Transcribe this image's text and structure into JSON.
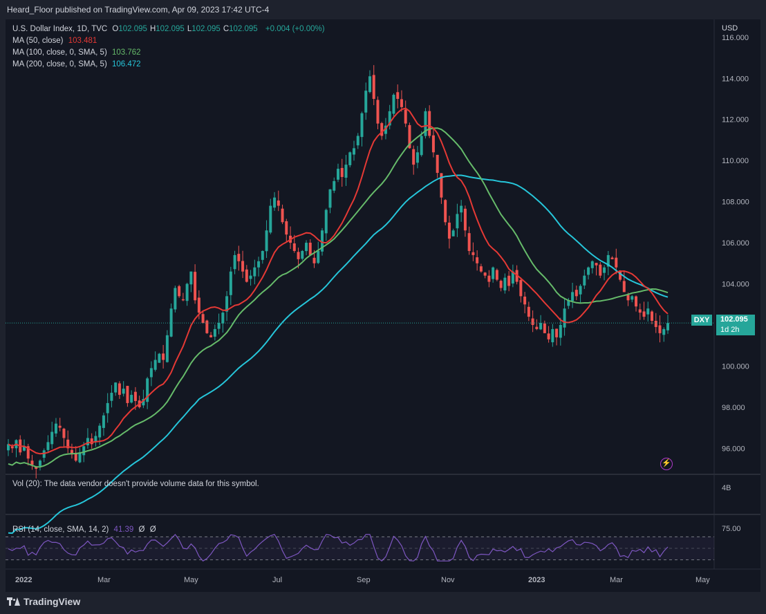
{
  "header": {
    "title": "Heard_Floor published on TradingView.com, Apr 09, 2023 17:42 UTC-4"
  },
  "legend": {
    "symbol": "U.S. Dollar Index, 1D, TVC",
    "ohlc": [
      {
        "k": "O",
        "v": "102.095"
      },
      {
        "k": "H",
        "v": "102.095"
      },
      {
        "k": "L",
        "v": "102.095"
      },
      {
        "k": "C",
        "v": "102.095"
      }
    ],
    "change": "+0.004 (+0.00%)",
    "ma50": {
      "label": "MA (50, close)",
      "value": "103.481",
      "color": "#e53935"
    },
    "ma100": {
      "label": "MA (100, close, 0, SMA, 5)",
      "value": "103.762",
      "color": "#66bb6a"
    },
    "ma200": {
      "label": "MA (200, close, 0, SMA, 5)",
      "value": "106.472",
      "color": "#26c6da"
    },
    "vol": "Vol (20): The data vendor doesn't provide volume data for this symbol.",
    "rsi": {
      "label": "RSI (14, close, SMA, 14, 2)",
      "value": "41.39",
      "extra1": "Ø",
      "extra2": "Ø"
    }
  },
  "price_axis": {
    "currency": "USD",
    "ticks": [
      "116.000",
      "114.000",
      "112.000",
      "110.000",
      "108.000",
      "106.000",
      "104.000",
      "102.000",
      "100.000",
      "98.000",
      "96.000"
    ],
    "current_price": "102.095",
    "countdown": "1d 2h",
    "symbol_tag": "DXY"
  },
  "volume_axis": {
    "label": "4B"
  },
  "rsi_axis": {
    "ticks": [
      "75.00"
    ]
  },
  "time_axis": {
    "labels": [
      "2022",
      "Mar",
      "May",
      "Jul",
      "Sep",
      "Nov",
      "2023",
      "Mar",
      "May"
    ]
  },
  "footer": {
    "brand": "TradingView"
  },
  "colors": {
    "up": "#26a69a",
    "down": "#ef5350",
    "rsi": "#7e57c2",
    "bg": "#131722"
  },
  "chart_data": {
    "type": "candlestick",
    "symbol": "DXY",
    "y_range": [
      95,
      116
    ],
    "closes": [
      96.2,
      96.0,
      96.4,
      95.8,
      96.1,
      95.5,
      95.2,
      95.0,
      95.4,
      95.9,
      96.3,
      96.8,
      97.2,
      97.0,
      96.5,
      96.0,
      95.7,
      95.4,
      95.8,
      96.1,
      96.5,
      96.2,
      96.6,
      97.1,
      97.6,
      98.2,
      98.7,
      99.2,
      98.6,
      98.9,
      98.2,
      98.6,
      98.3,
      98.0,
      98.4,
      99.4,
      99.9,
      100.3,
      100.6,
      100.3,
      101.5,
      102.8,
      103.8,
      103.4,
      103.2,
      104.0,
      104.6,
      103.2,
      102.6,
      102.1,
      101.6,
      101.4,
      101.8,
      102.1,
      102.6,
      103.4,
      104.6,
      105.4,
      105.1,
      104.6,
      104.1,
      104.4,
      104.8,
      105.1,
      105.6,
      106.6,
      107.8,
      108.2,
      107.8,
      107.0,
      106.4,
      106.0,
      105.6,
      105.2,
      105.6,
      106.0,
      105.4,
      105.0,
      105.6,
      106.6,
      107.6,
      108.6,
      109.0,
      109.6,
      109.2,
      109.8,
      110.4,
      110.6,
      111.2,
      112.3,
      113.4,
      114.1,
      113.0,
      111.8,
      111.2,
      111.7,
      112.4,
      113.2,
      113.0,
      112.6,
      111.8,
      110.6,
      109.8,
      110.4,
      111.2,
      112.4,
      111.2,
      110.4,
      109.4,
      108.2,
      107.0,
      106.2,
      106.6,
      107.4,
      107.8,
      106.6,
      105.6,
      105.4,
      105.0,
      104.6,
      104.4,
      104.1,
      104.8,
      104.2,
      103.8,
      104.3,
      103.9,
      104.6,
      104.1,
      103.4,
      103.0,
      102.4,
      102.0,
      101.8,
      102.1,
      101.6,
      101.3,
      101.8,
      101.4,
      102.0,
      102.8,
      103.2,
      103.6,
      103.4,
      103.9,
      104.4,
      104.8,
      105.1,
      104.9,
      104.4,
      104.8,
      105.4,
      105.2,
      104.8,
      104.2,
      103.6,
      103.2,
      103.4,
      102.9,
      102.6,
      102.4,
      102.8,
      102.2,
      101.9,
      101.6,
      101.8,
      102.095
    ],
    "ma50_last": 103.481,
    "ma100_last": 103.762,
    "ma200_last": 106.472,
    "rsi_last": 41.39,
    "rsi_levels": [
      30,
      70
    ]
  }
}
